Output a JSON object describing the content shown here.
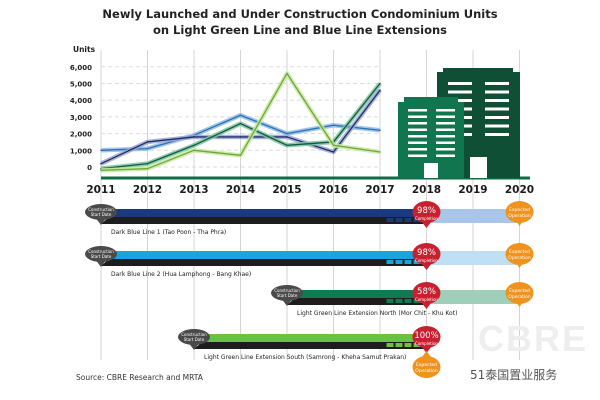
{
  "title_line1": "Newly Launched and Under Construction Condominium Units",
  "title_line2": "on Light Green Line and Blue Line Extensions",
  "source": "Source: CBRE Research and MRTA",
  "watermark": "CBRE",
  "wechat_label": "51泰国置业服务",
  "chart_data": {
    "type": "line",
    "title": "Newly Launched and Under Construction Condominium Units on Light Green Line and Blue Line Extensions",
    "ylabel": "Units",
    "xlabel": "",
    "x": [
      "2011",
      "2012",
      "2013",
      "2014",
      "2015",
      "2016",
      "2017",
      "2018",
      "2019",
      "2020"
    ],
    "yticks": [
      "0",
      "1,000",
      "2,000",
      "3,000",
      "4,000",
      "5,000",
      "6,000"
    ],
    "ylim": [
      -500,
      6500
    ],
    "grid": "dashed-horizontal",
    "series": [
      {
        "name": "Dark Blue Line 1",
        "color": "#8fbde6",
        "core": "#2f6fb0",
        "values": [
          1000,
          1100,
          1900,
          3100,
          2000,
          2500,
          2200
        ]
      },
      {
        "name": "Dark Blue Line 2",
        "color": "#9aa6cf",
        "core": "#1f2d6b",
        "values": [
          200,
          1500,
          1800,
          1800,
          1800,
          900,
          4600
        ]
      },
      {
        "name": "Light Green Line Extension North",
        "color": "#7fc2a3",
        "core": "#0f5c3c",
        "values": [
          -100,
          200,
          1300,
          2600,
          1300,
          1500,
          5000
        ]
      },
      {
        "name": "Light Green Line Extension South",
        "color": "#c8e7a0",
        "core": "#6aa83a",
        "values": [
          -200,
          -100,
          1000,
          700,
          5600,
          1300,
          900
        ]
      }
    ],
    "timelines": [
      {
        "name": "Dark Blue Line 1 (Tao Poon - Tha Phra)",
        "start": "2011",
        "completion_pct": "98%",
        "completion_label": "Completion",
        "expected_label": "Expected Operation",
        "expected": "2020",
        "bar": "#1a3a80",
        "future": "#a9c6ea"
      },
      {
        "name": "Dark Blue Line 2 (Hua Lamphong - Bang Khae)",
        "start": "2011",
        "completion_pct": "98%",
        "completion_label": "Completion",
        "expected_label": "Expected Operation",
        "expected": "2020",
        "bar": "#1aa3dc",
        "future": "#bfe0f4"
      },
      {
        "name": "Light Green Line Extension North (Mor Chit - Khu Kot)",
        "start": "2015",
        "completion_pct": "58%",
        "completion_label": "Completion",
        "expected_label": "Expected Operation",
        "expected": "2020",
        "bar": "#107a52",
        "future": "#9fcfbb"
      },
      {
        "name": "Light Green Line Extension South (Samrong - Kheha Samut Prakan)",
        "start": "2013",
        "completion_pct": "100%",
        "completion_label": "Completion",
        "expected_label": "Expected Operation",
        "expected": "2018",
        "bar": "#6cc140",
        "future": ""
      }
    ],
    "start_badge": "Construction Start Date"
  }
}
